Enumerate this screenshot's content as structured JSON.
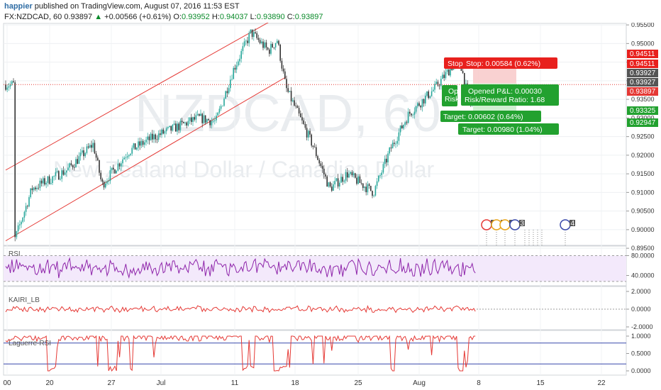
{
  "header": {
    "author": "happier",
    "published": "published on TradingView.com, August 07, 2016 11:53 EST",
    "symbol": "FX:NZDCAD, 60",
    "last": "0.93897",
    "change_arrow": "▲",
    "change": "+0.00566 (+0.61%)",
    "o_label": "O:",
    "o_value": "0.93952",
    "h_label": "H:",
    "h_value": "0.94037",
    "l_label": "L:",
    "l_value": "0.93890",
    "c_label": "C:",
    "c_value": "0.93897"
  },
  "watermark": {
    "symbol": "NZDCAD, 60",
    "name": "New Zealand Dollar / Canadian Dollar"
  },
  "colors": {
    "bull": "#26a69a",
    "bear": "#333333",
    "channel": "#e53935",
    "rsi": "#8e24aa",
    "kairi": "#e53935",
    "laguerre": "#e53935",
    "level": "#3949ab",
    "stop": "#e8201d",
    "target": "#22a12f",
    "lastprice": "#e53935"
  },
  "price_axis": {
    "ticks": [
      "0.95500",
      "0.95000",
      "0.94500",
      "0.94000",
      "0.93500",
      "0.93000",
      "0.92500",
      "0.92000",
      "0.91500",
      "0.91000",
      "0.90500",
      "0.90000",
      "0.89500"
    ],
    "tags": [
      {
        "value": 0.94511,
        "text": "0.94511",
        "color": "#e8201d"
      },
      {
        "value": 0.94511,
        "text": "0.94511",
        "color": "#e8201d"
      },
      {
        "value": 0.93927,
        "text": "0.93927",
        "color": "#555555"
      },
      {
        "value": 0.93927,
        "text": "0.93927",
        "color": "#555555"
      },
      {
        "value": 0.93897,
        "text": "0.93897",
        "color": "#e53935"
      },
      {
        "value": 0.93325,
        "text": "0.93325",
        "color": "#22a12f"
      },
      {
        "value": 0.92947,
        "text": "0.92947",
        "color": "#22a12f"
      }
    ]
  },
  "rsi_panel": {
    "title": "RSI",
    "ticks": [
      "80.0000",
      "40.0000"
    ]
  },
  "kairi_panel": {
    "title": "KAIRI_LB",
    "ticks": [
      "2.0000",
      "0.0000",
      "-2.0000"
    ]
  },
  "laguerre_panel": {
    "title": "Laguerre-RSI",
    "ticks": [
      "1.0000",
      "0.5000",
      "0.0000"
    ]
  },
  "x_axis": {
    "labels": [
      "00",
      "20",
      "27",
      "Jul",
      "11",
      "18",
      "25",
      "Aug",
      "8",
      "15",
      "22"
    ]
  },
  "annotations": {
    "stop_small": "Stop",
    "stop": "Stop: 0.00584 (0.62%)",
    "opened_small": "Op",
    "risk_small": "Risk",
    "opened": "Opened P&L: 0.00030",
    "risk_reward": "Risk/Reward Ratio: 1.68",
    "target1": "Target: 0.00602 (0.64%)",
    "target2": "Target: 0.00980 (1.04%)"
  },
  "events": {
    "badges": [
      "1",
      "2",
      "2",
      "3",
      "4"
    ]
  },
  "chart_data": {
    "type": "candlestick",
    "symbol": "FX:NZDCAD",
    "interval": "60",
    "x_labels": [
      "00",
      "20",
      "27",
      "Jul",
      "11",
      "18",
      "25",
      "Aug",
      "8",
      "15",
      "22"
    ],
    "ylim": [
      0.8935,
      0.9575
    ],
    "close_path": [
      {
        "x_date": "2016-06-14",
        "close": 0.897
      },
      {
        "x_date": "2016-06-16",
        "close": 0.911
      },
      {
        "x_date": "2016-06-20",
        "close": 0.916
      },
      {
        "x_date": "2016-06-23",
        "close": 0.923
      },
      {
        "x_date": "2016-06-24",
        "close": 0.912
      },
      {
        "x_date": "2016-06-27",
        "close": 0.921
      },
      {
        "x_date": "2016-06-30",
        "close": 0.925
      },
      {
        "x_date": "2016-07-05",
        "close": 0.93
      },
      {
        "x_date": "2016-07-07",
        "close": 0.929
      },
      {
        "x_date": "2016-07-09",
        "close": 0.943
      },
      {
        "x_date": "2016-07-11",
        "close": 0.953
      },
      {
        "x_date": "2016-07-13",
        "close": 0.948
      },
      {
        "x_date": "2016-07-14",
        "close": 0.951
      },
      {
        "x_date": "2016-07-15",
        "close": 0.938
      },
      {
        "x_date": "2016-07-18",
        "close": 0.923
      },
      {
        "x_date": "2016-07-20",
        "close": 0.911
      },
      {
        "x_date": "2016-07-22",
        "close": 0.915
      },
      {
        "x_date": "2016-07-25",
        "close": 0.91
      },
      {
        "x_date": "2016-07-27",
        "close": 0.922
      },
      {
        "x_date": "2016-07-29",
        "close": 0.931
      },
      {
        "x_date": "2016-08-01",
        "close": 0.938
      },
      {
        "x_date": "2016-08-03",
        "close": 0.944
      },
      {
        "x_date": "2016-08-04",
        "close": 0.944
      },
      {
        "x_date": "2016-08-05",
        "close": 0.933
      },
      {
        "x_date": "2016-08-05",
        "close": 0.93897
      }
    ],
    "channel": {
      "upper": [
        {
          "x_date": "2016-06-13",
          "y": 0.916
        },
        {
          "x_date": "2016-07-14",
          "y": 0.957
        }
      ],
      "lower": [
        {
          "x_date": "2016-06-13",
          "y": 0.897
        },
        {
          "x_date": "2016-07-15",
          "y": 0.941
        }
      ]
    },
    "last_price": 0.93897,
    "position": {
      "entry": 0.93927,
      "stop": 0.94511,
      "target1": 0.93325,
      "target2": 0.92947,
      "risk_reward": 1.68
    },
    "indicators": [
      {
        "name": "RSI",
        "levels": [
          80,
          40
        ]
      },
      {
        "name": "KAIRI_LB",
        "range": [
          -2,
          2
        ]
      },
      {
        "name": "Laguerre-RSI",
        "levels": [
          0.8,
          0.2
        ],
        "range": [
          0,
          1
        ]
      }
    ]
  }
}
